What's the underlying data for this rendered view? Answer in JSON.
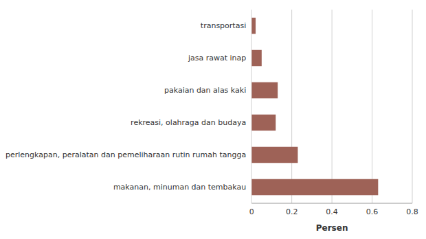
{
  "chart_data": {
    "type": "bar",
    "orientation": "horizontal",
    "categories": [
      "makanan, minuman dan tembakau",
      "perlengkapan, peralatan dan pemeliharaan rutin rumah tangga",
      "rekreasi, olahraga dan budaya",
      "pakaian dan alas kaki",
      "jasa rawat inap",
      "transportasi"
    ],
    "values": [
      0.63,
      0.23,
      0.12,
      0.13,
      0.05,
      0.02
    ],
    "color": "#9e6257",
    "xlabel": "Persen",
    "xlim": [
      0,
      0.8
    ],
    "xticks": [
      0,
      0.2,
      0.4,
      0.6,
      0.8
    ],
    "grid": true
  }
}
